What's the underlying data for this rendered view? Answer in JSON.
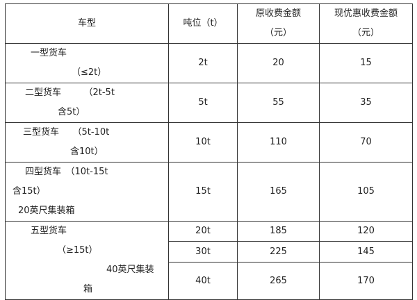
{
  "headers": {
    "type": "车型",
    "tonnage": "吨位（t）",
    "original": [
      "原收费金额",
      "（元）"
    ],
    "discount": [
      "现优惠收费金额",
      "（元）"
    ]
  },
  "rows": [
    {
      "type": [
        "一型货车",
        "（≤2t）"
      ],
      "tonnage": "2t",
      "original": "20",
      "discount": "15"
    },
    {
      "type": [
        "二型货车　　　（2t-5t",
        "含5t）"
      ],
      "tonnage": "5t",
      "original": "55",
      "discount": "35"
    },
    {
      "type": [
        "三型货车　　（5t-10t",
        "含10t）"
      ],
      "tonnage": "10t",
      "original": "110",
      "discount": "70"
    },
    {
      "type": [
        "四型货车　（10t-15t",
        "含15t）",
        "20英尺集装箱"
      ],
      "tonnage": "15t",
      "original": "165",
      "discount": "105"
    },
    {
      "type": [
        "五型货车",
        "（≥15t）",
        "40英尺集装",
        "箱"
      ],
      "sub": [
        {
          "tonnage": "20t",
          "original": "185",
          "discount": "120"
        },
        {
          "tonnage": "30t",
          "original": "225",
          "discount": "145"
        },
        {
          "tonnage": "40t",
          "original": "265",
          "discount": "170"
        }
      ]
    }
  ]
}
